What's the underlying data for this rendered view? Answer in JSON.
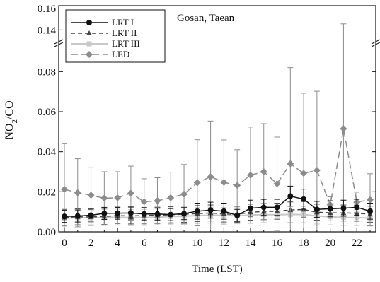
{
  "chart_data": {
    "type": "line",
    "annotation": "Gosan, Taean",
    "xlabel": "Time (LST)",
    "ylabel": "NO2/CO",
    "ylabel_main": "NO",
    "ylabel_sub": "2",
    "ylabel_rest": "/CO",
    "x": [
      0,
      1,
      2,
      3,
      4,
      5,
      6,
      7,
      8,
      9,
      10,
      11,
      12,
      13,
      14,
      15,
      16,
      17,
      18,
      19,
      20,
      21,
      22,
      23
    ],
    "x_ticks": [
      "0",
      "2",
      "4",
      "6",
      "8",
      "10",
      "12",
      "14",
      "16",
      "18",
      "20",
      "22"
    ],
    "y_ticks": [
      "0.00",
      "0.02",
      "0.04",
      "0.06",
      "0.08"
    ],
    "y_break_ticks": [
      "0.14",
      "0.16"
    ],
    "ylim": [
      0,
      0.16
    ],
    "axis_break": {
      "lower_max": 0.09,
      "upper_min": 0.135
    },
    "legend_position": "top-left",
    "series": [
      {
        "name": "LRT I",
        "color": "#111111",
        "marker": "circle",
        "dash": "solid",
        "values": [
          0.0077,
          0.0079,
          0.0083,
          0.0092,
          0.0093,
          0.0094,
          0.0089,
          0.0089,
          0.0086,
          0.0091,
          0.0103,
          0.0108,
          0.0103,
          0.0082,
          0.0118,
          0.0122,
          0.0122,
          0.0178,
          0.0163,
          0.0112,
          0.0115,
          0.0118,
          0.0122,
          0.0103
        ],
        "errors": [
          0.003,
          0.003,
          0.003,
          0.003,
          0.003,
          0.003,
          0.003,
          0.003,
          0.003,
          0.003,
          0.004,
          0.004,
          0.004,
          0.003,
          0.004,
          0.004,
          0.004,
          0.005,
          0.005,
          0.004,
          0.004,
          0.004,
          0.004,
          0.004
        ]
      },
      {
        "name": "LRT II",
        "color": "#444444",
        "marker": "triangle",
        "dash": "6,4",
        "values": [
          0.0072,
          0.0075,
          0.0074,
          0.0077,
          0.0081,
          0.0079,
          0.0082,
          0.0083,
          0.0085,
          0.0088,
          0.0091,
          0.0094,
          0.0089,
          0.0087,
          0.0098,
          0.0101,
          0.0103,
          0.0109,
          0.0111,
          0.0098,
          0.0095,
          0.0094,
          0.0093,
          0.0088
        ],
        "errors": [
          0.004,
          0.004,
          0.004,
          0.004,
          0.004,
          0.004,
          0.004,
          0.004,
          0.004,
          0.004,
          0.004,
          0.004,
          0.004,
          0.004,
          0.004,
          0.004,
          0.004,
          0.004,
          0.004,
          0.004,
          0.004,
          0.004,
          0.004,
          0.004
        ]
      },
      {
        "name": "LRT III",
        "color": "#c8c8c8",
        "marker": "square",
        "dash": "solid",
        "values": [
          0.0068,
          0.0071,
          0.007,
          0.0072,
          0.0073,
          0.0071,
          0.0072,
          0.0074,
          0.0076,
          0.0078,
          0.0081,
          0.0083,
          0.0082,
          0.008,
          0.0084,
          0.0086,
          0.0085,
          0.0087,
          0.0086,
          0.0079,
          0.0075,
          0.0072,
          0.0071,
          0.0069
        ],
        "errors": [
          0.004,
          0.004,
          0.004,
          0.004,
          0.004,
          0.004,
          0.004,
          0.004,
          0.004,
          0.004,
          0.004,
          0.004,
          0.004,
          0.004,
          0.004,
          0.004,
          0.004,
          0.004,
          0.004,
          0.004,
          0.004,
          0.004,
          0.004,
          0.004
        ]
      },
      {
        "name": "LED",
        "color": "#8c8c8c",
        "marker": "diamond",
        "dash": "10,5",
        "values": [
          0.0212,
          0.0195,
          0.0183,
          0.0168,
          0.017,
          0.0193,
          0.015,
          0.0155,
          0.017,
          0.0188,
          0.0245,
          0.0275,
          0.0247,
          0.0232,
          0.0283,
          0.03,
          0.024,
          0.034,
          0.0292,
          0.0307,
          0.0135,
          0.0515,
          0.0148,
          0.016
        ],
        "errors": [
          0.0228,
          0.017,
          0.0137,
          0.0132,
          0.013,
          0.0135,
          0.0115,
          0.0115,
          0.0128,
          0.0148,
          0.0215,
          0.0278,
          0.0212,
          0.0178,
          0.024,
          0.024,
          0.0233,
          0.048,
          0.04,
          0.0395,
          0.004,
          0.0935,
          0.005,
          0.013
        ]
      }
    ]
  }
}
